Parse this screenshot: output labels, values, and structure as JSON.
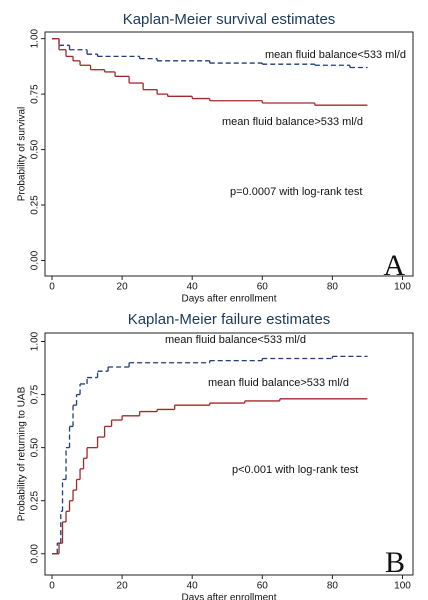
{
  "chart_data": [
    {
      "type": "step",
      "title": "Kaplan-Meier survival estimates",
      "x_label": "Days after enrollment",
      "y_label": "Probability of survival",
      "annotations": [
        "p=0.0007 with log-rank test"
      ],
      "panel_label": "A",
      "xlim": [
        -2,
        103
      ],
      "xticks": [
        0,
        20,
        40,
        60,
        80,
        100
      ],
      "ylim": [
        -0.07,
        1.03
      ],
      "yticks": [
        {
          "value": 0,
          "label": "0.00"
        },
        {
          "value": 0.25,
          "label": "0.25"
        },
        {
          "value": 0.5,
          "label": "0.50"
        },
        {
          "value": 0.75,
          "label": "0.75"
        },
        {
          "value": 1,
          "label": "1.00"
        }
      ],
      "series": [
        {
          "name": "mean fluid balance<533 ml/d",
          "color": "#1f3d7a",
          "dashed": true,
          "x": [
            0,
            2,
            5,
            10,
            13,
            25,
            30,
            45,
            60,
            75,
            85,
            90
          ],
          "values": [
            1,
            0.97,
            0.95,
            0.93,
            0.92,
            0.91,
            0.9,
            0.89,
            0.885,
            0.88,
            0.87,
            0.87
          ]
        },
        {
          "name": "mean fluid balance>533 ml/d",
          "color": "#a02a2a",
          "dashed": false,
          "x": [
            0,
            2,
            4,
            6,
            8,
            11,
            15,
            18,
            22,
            26,
            30,
            33,
            40,
            45,
            60,
            75,
            90
          ],
          "values": [
            1,
            0.95,
            0.92,
            0.9,
            0.88,
            0.86,
            0.85,
            0.83,
            0.8,
            0.77,
            0.75,
            0.74,
            0.73,
            0.72,
            0.71,
            0.7,
            0.7
          ]
        }
      ]
    },
    {
      "type": "step",
      "title": "Kaplan-Meier failure estimates",
      "x_label": "Days after enrollment",
      "y_label": "Probability of returning to UAB",
      "annotations": [
        "p<0.001 with log-rank test"
      ],
      "panel_label": "B",
      "xlim": [
        -2,
        103
      ],
      "xticks": [
        0,
        20,
        40,
        60,
        80,
        100
      ],
      "ylim": [
        -0.1,
        1.04
      ],
      "yticks": [
        {
          "value": 0,
          "label": "0.00"
        },
        {
          "value": 0.25,
          "label": "0.25"
        },
        {
          "value": 0.5,
          "label": "0.50"
        },
        {
          "value": 0.75,
          "label": "0.75"
        },
        {
          "value": 1,
          "label": "1.00"
        }
      ],
      "series": [
        {
          "name": "mean fluid balance<533 ml/d",
          "color": "#1f3d7a",
          "dashed": true,
          "x": [
            0,
            1.5,
            2.5,
            3,
            4,
            5,
            6,
            7,
            8,
            10,
            13,
            16,
            22,
            45,
            60,
            80,
            90
          ],
          "values": [
            0,
            0.05,
            0.2,
            0.35,
            0.5,
            0.6,
            0.7,
            0.75,
            0.8,
            0.83,
            0.86,
            0.88,
            0.9,
            0.91,
            0.92,
            0.93,
            0.93
          ]
        },
        {
          "name": "mean fluid balance>533 ml/d",
          "color": "#a02a2a",
          "dashed": false,
          "x": [
            0,
            2,
            3,
            4,
            5,
            6,
            7,
            8,
            9,
            10,
            13,
            15,
            17,
            20,
            25,
            30,
            35,
            45,
            55,
            65,
            90
          ],
          "values": [
            0,
            0.05,
            0.15,
            0.2,
            0.25,
            0.3,
            0.35,
            0.4,
            0.45,
            0.5,
            0.55,
            0.6,
            0.63,
            0.65,
            0.67,
            0.68,
            0.7,
            0.71,
            0.72,
            0.73,
            0.73
          ]
        }
      ]
    }
  ]
}
